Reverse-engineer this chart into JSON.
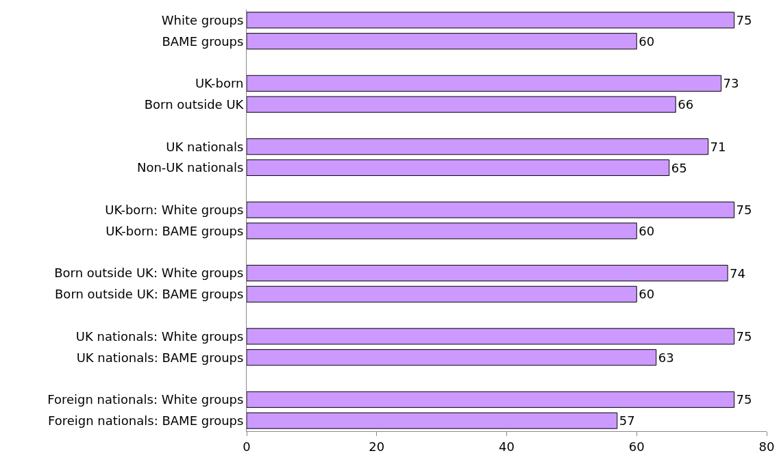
{
  "chart_data": {
    "type": "bar",
    "orientation": "horizontal",
    "categories": [
      "White groups",
      "BAME groups",
      null,
      "UK-born",
      "Born outside UK",
      null,
      "UK nationals",
      "Non-UK nationals",
      null,
      "UK-born: White groups",
      "UK-born: BAME groups",
      null,
      "Born outside UK: White groups",
      "Born outside UK: BAME groups",
      null,
      "UK nationals: White groups",
      "UK nationals: BAME groups",
      null,
      "Foreign nationals: White groups",
      "Foreign nationals: BAME groups"
    ],
    "values": [
      75,
      60,
      null,
      73,
      66,
      null,
      71,
      65,
      null,
      75,
      60,
      null,
      74,
      60,
      null,
      75,
      63,
      null,
      75,
      57
    ],
    "color": "#cc99ff",
    "xlim": [
      0,
      80
    ],
    "xticks": [
      0,
      20,
      40,
      60,
      80
    ],
    "data_labels": true
  }
}
